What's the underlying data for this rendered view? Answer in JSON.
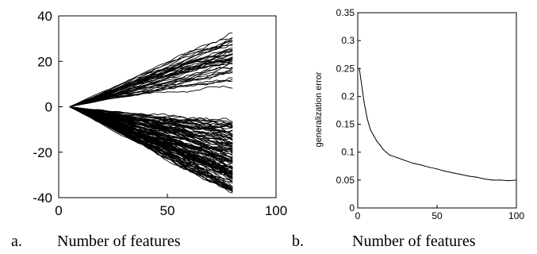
{
  "chart_data": [
    {
      "panel": "a.",
      "type": "line",
      "title": "",
      "xlabel": "Number of features",
      "ylabel": "",
      "xlim": [
        0,
        100
      ],
      "ylim": [
        -40,
        40
      ],
      "xticks": [
        "0",
        "50",
        "100"
      ],
      "yticks": [
        "40",
        "20",
        "0",
        "-20",
        "-40"
      ],
      "grid": false,
      "legend": "none",
      "series_description_values": {
        "x_start": 5,
        "x_end": 80,
        "common_start_y": 0,
        "upper_bundle_end_y_range": [
          15,
          31
        ],
        "lower_bundle_end_y_range": [
          -37,
          -10
        ]
      },
      "series_color": "#000000"
    },
    {
      "panel": "b.",
      "type": "line",
      "title": "",
      "xlabel": "Number of features",
      "ylabel": "generalization error",
      "xlim": [
        0,
        100
      ],
      "ylim": [
        0,
        0.35
      ],
      "xticks": [
        "0",
        "50",
        "100"
      ],
      "yticks": [
        "0.35",
        "0.3",
        "0.25",
        "0.2",
        "0.15",
        "0.1",
        "0.05",
        "0"
      ],
      "grid": false,
      "legend": "none",
      "x": [
        1,
        2,
        3,
        4,
        5,
        6,
        7,
        8,
        10,
        12,
        14,
        16,
        18,
        20,
        25,
        30,
        35,
        40,
        45,
        50,
        55,
        60,
        65,
        70,
        75,
        80,
        85,
        90,
        95,
        100
      ],
      "values": [
        0.25,
        0.23,
        0.21,
        0.19,
        0.175,
        0.16,
        0.15,
        0.14,
        0.13,
        0.12,
        0.113,
        0.105,
        0.1,
        0.095,
        0.09,
        0.085,
        0.08,
        0.077,
        0.073,
        0.07,
        0.066,
        0.063,
        0.06,
        0.057,
        0.055,
        0.052,
        0.05,
        0.05,
        0.049,
        0.05
      ],
      "series_color": "#000000"
    }
  ],
  "captions": {
    "a_letter": "a.",
    "a_text": "Number of features",
    "b_letter": "b.",
    "b_text": "Number of features"
  }
}
